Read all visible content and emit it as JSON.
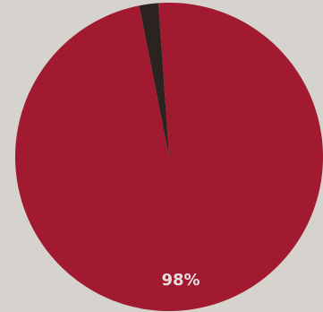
{
  "chart_data": {
    "type": "pie",
    "slices": [
      {
        "value": 98,
        "label": "98%",
        "color": "#a11a30"
      },
      {
        "value": 2,
        "label": "",
        "color": "#2c2220"
      }
    ],
    "start_angle_deg": -4,
    "legend": "none"
  },
  "colors": {
    "background": "#d6d3ce",
    "label_text": "#e9dede"
  }
}
